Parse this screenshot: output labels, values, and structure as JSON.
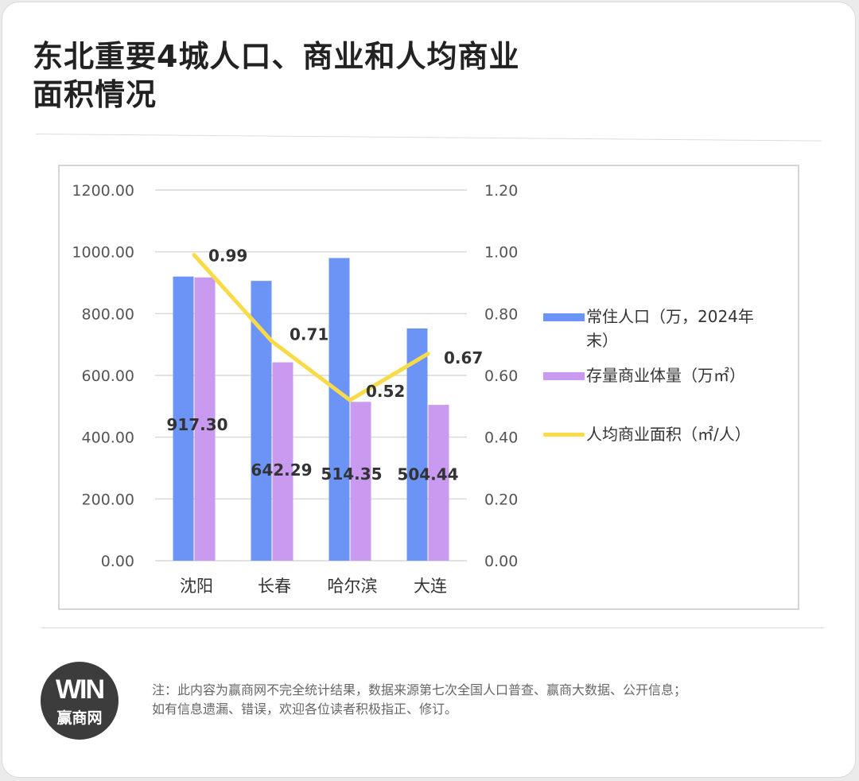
{
  "title_lines": [
    "东北重要4城人口、商业和人均商业",
    "面积情况"
  ],
  "colors": {
    "population": "#6c94f7",
    "stock": "#c99af0",
    "per_capita": "#f9db4a",
    "grid": "#d9d9d9",
    "axis_text": "#555555",
    "label_text": "#333333"
  },
  "chart_data": {
    "type": "bar",
    "categories": [
      "沈阳",
      "长春",
      "哈尔滨",
      "大连"
    ],
    "series": [
      {
        "name": "常住人口（万，2024年末）",
        "type": "bar",
        "axis": "left",
        "values": [
          920,
          906,
          980,
          752
        ]
      },
      {
        "name": "存量商业体量（万㎡）",
        "type": "bar",
        "axis": "left",
        "values": [
          917.3,
          642.29,
          514.35,
          504.44
        ],
        "data_labels": [
          "917.30",
          "642.29",
          "514.35",
          "504.44"
        ]
      },
      {
        "name": "人均商业面积（㎡/人）",
        "type": "line",
        "axis": "right",
        "values": [
          0.99,
          0.71,
          0.52,
          0.67
        ],
        "data_labels": [
          "0.99",
          "0.71",
          "0.52",
          "0.67"
        ]
      }
    ],
    "left_axis": {
      "min": 0,
      "max": 1200,
      "step": 200,
      "tick_labels": [
        "0.00",
        "200.00",
        "400.00",
        "600.00",
        "800.00",
        "1000.00",
        "1200.00"
      ]
    },
    "right_axis": {
      "min": 0,
      "max": 1.2,
      "step": 0.2,
      "tick_labels": [
        "0.00",
        "0.20",
        "0.40",
        "0.60",
        "0.80",
        "1.00",
        "1.20"
      ]
    },
    "grid": true,
    "legend_position": "right"
  },
  "legend": {
    "population": [
      "常住人口（万，2024年",
      "末）"
    ],
    "stock": "存量商业体量（万㎡）",
    "per_capita": "人均商业面积（㎡/人）"
  },
  "logo": {
    "mark": "WIN",
    "name": "赢商网"
  },
  "note_lines": [
    "注：此内容为赢商网不完全统计结果，数据来源第七次全国人口普查、赢商大数据、公开信息；",
    "如有信息遗漏、错误，欢迎各位读者积极指正、修订。"
  ]
}
